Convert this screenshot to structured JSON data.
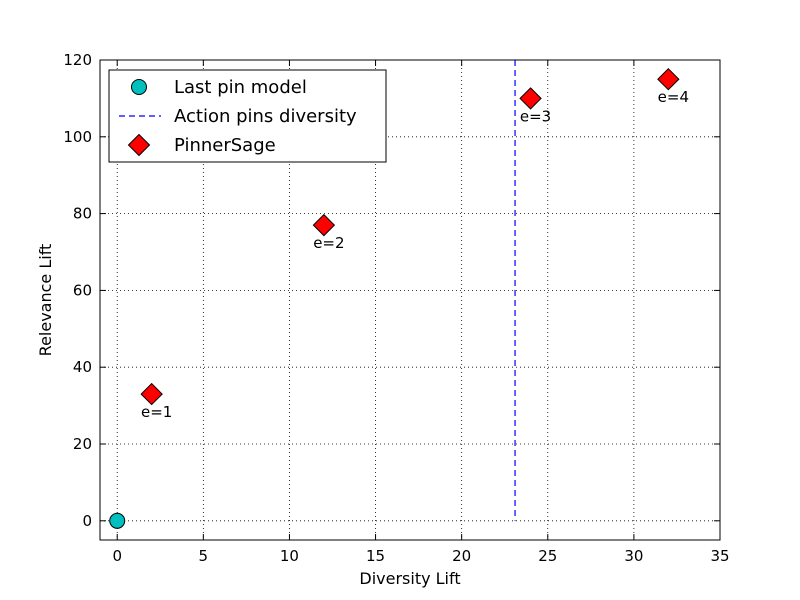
{
  "chart_data": {
    "type": "scatter",
    "title": "",
    "xlabel": "Diversity Lift",
    "ylabel": "Relevance Lift",
    "xlim": [
      -1,
      35
    ],
    "ylim": [
      -5,
      120
    ],
    "xticks": [
      0,
      5,
      10,
      15,
      20,
      25,
      30,
      35
    ],
    "yticks": [
      0,
      20,
      40,
      60,
      80,
      100,
      120
    ],
    "grid": true,
    "legend_position": "top-left",
    "series": [
      {
        "name": "Last pin model",
        "kind": "marker-circle",
        "color": "#00bfbf",
        "points": [
          {
            "x": 0,
            "y": 0
          }
        ]
      },
      {
        "name": "Action pins diversity",
        "kind": "vertical-dashed-line",
        "color": "#0000ff",
        "x": 23.1,
        "y_range": [
          0,
          120
        ]
      },
      {
        "name": "PinnerSage",
        "kind": "marker-diamond",
        "color": "#ff0000",
        "points": [
          {
            "x": 2,
            "y": 33,
            "label": "e=1"
          },
          {
            "x": 12,
            "y": 77,
            "label": "e=2"
          },
          {
            "x": 24,
            "y": 110,
            "label": "e=3"
          },
          {
            "x": 32,
            "y": 115,
            "label": "e=4"
          }
        ]
      }
    ]
  }
}
